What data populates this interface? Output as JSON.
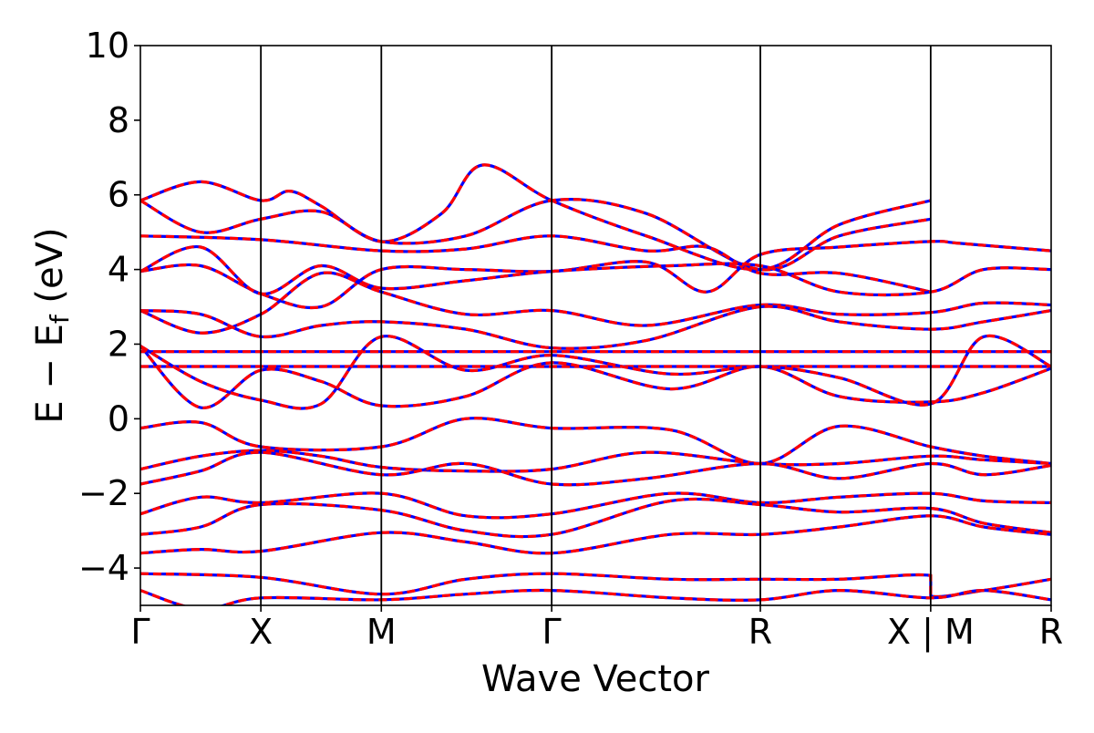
{
  "chart_data": {
    "type": "line",
    "title": "",
    "xlabel": "Wave Vector",
    "ylabel_parts": {
      "main": "E − E",
      "sub": "f",
      "unit": " (eV)"
    },
    "ylim": [
      -5,
      10
    ],
    "yticks": [
      10,
      8,
      6,
      4,
      2,
      0,
      -2,
      -4
    ],
    "ytick_labels": [
      "10",
      "8",
      "6",
      "4",
      "2",
      "0",
      "−2",
      "−4"
    ],
    "grid": false,
    "legend": "none",
    "kpoints": [
      {
        "label": "Γ",
        "x": 0.0
      },
      {
        "label": "X",
        "x": 0.5
      },
      {
        "label": "M",
        "x": 1.0
      },
      {
        "label": "Γ",
        "x": 1.707
      },
      {
        "label": "R",
        "x": 2.573
      },
      {
        "label": "X | M",
        "x": 3.28
      },
      {
        "label": "R",
        "x": 3.78
      }
    ],
    "xlim": [
      0,
      3.78
    ],
    "colors": {
      "series_a": "#0000ff",
      "series_b": "#ff0000",
      "axes": "#000000"
    },
    "series": [
      {
        "points": [
          [
            0,
            5.85
          ],
          [
            0.25,
            6.35
          ],
          [
            0.5,
            5.85
          ],
          [
            0.62,
            6.1
          ],
          [
            0.75,
            5.7
          ],
          [
            1.0,
            4.75
          ],
          [
            1.25,
            5.5
          ],
          [
            1.42,
            6.8
          ],
          [
            1.707,
            5.85
          ],
          [
            2.1,
            4.9
          ],
          [
            2.573,
            4.0
          ],
          [
            2.9,
            5.2
          ],
          [
            3.28,
            5.85
          ]
        ]
      },
      {
        "points": [
          [
            0,
            5.85
          ],
          [
            0.25,
            5.0
          ],
          [
            0.5,
            5.35
          ],
          [
            0.75,
            5.55
          ],
          [
            1.0,
            4.75
          ],
          [
            1.35,
            4.9
          ],
          [
            1.707,
            5.85
          ],
          [
            2.1,
            5.5
          ],
          [
            2.573,
            4.0
          ],
          [
            2.9,
            4.9
          ],
          [
            3.28,
            5.35
          ]
        ]
      },
      {
        "points": [
          [
            0,
            4.9
          ],
          [
            0.5,
            4.8
          ],
          [
            1.0,
            4.5
          ],
          [
            1.35,
            4.55
          ],
          [
            1.707,
            4.9
          ],
          [
            2.1,
            4.5
          ],
          [
            2.35,
            4.6
          ],
          [
            2.573,
            3.9
          ],
          [
            2.9,
            3.9
          ],
          [
            3.28,
            3.4
          ]
        ]
      },
      {
        "points": [
          [
            0,
            3.95
          ],
          [
            0.25,
            4.1
          ],
          [
            0.5,
            3.35
          ],
          [
            0.75,
            3.0
          ],
          [
            1.0,
            4.0
          ],
          [
            1.35,
            4.0
          ],
          [
            1.707,
            3.95
          ],
          [
            2.1,
            4.2
          ],
          [
            2.35,
            3.4
          ],
          [
            2.573,
            4.4
          ],
          [
            2.9,
            4.6
          ],
          [
            3.28,
            4.75
          ],
          [
            3.4,
            4.7
          ],
          [
            3.78,
            4.5
          ]
        ]
      },
      {
        "points": [
          [
            0,
            3.95
          ],
          [
            0.25,
            4.6
          ],
          [
            0.5,
            3.35
          ],
          [
            0.75,
            4.1
          ],
          [
            1.0,
            3.5
          ],
          [
            1.35,
            3.7
          ],
          [
            1.707,
            3.95
          ],
          [
            2.2,
            4.1
          ],
          [
            2.573,
            4.1
          ],
          [
            2.9,
            3.4
          ],
          [
            3.28,
            3.4
          ],
          [
            3.5,
            4.0
          ],
          [
            3.78,
            4.0
          ]
        ]
      },
      {
        "points": [
          [
            0,
            2.9
          ],
          [
            0.25,
            2.3
          ],
          [
            0.5,
            2.8
          ],
          [
            0.75,
            3.9
          ],
          [
            1.0,
            3.4
          ],
          [
            1.35,
            2.8
          ],
          [
            1.707,
            2.9
          ],
          [
            2.1,
            2.5
          ],
          [
            2.573,
            3.05
          ],
          [
            2.9,
            2.8
          ],
          [
            3.28,
            2.85
          ],
          [
            3.5,
            3.1
          ],
          [
            3.78,
            3.05
          ]
        ]
      },
      {
        "points": [
          [
            0,
            2.9
          ],
          [
            0.25,
            2.8
          ],
          [
            0.5,
            2.2
          ],
          [
            0.75,
            2.5
          ],
          [
            1.0,
            2.6
          ],
          [
            1.35,
            2.4
          ],
          [
            1.707,
            1.9
          ],
          [
            2.1,
            2.1
          ],
          [
            2.573,
            3.0
          ],
          [
            2.9,
            2.6
          ],
          [
            3.28,
            2.4
          ],
          [
            3.5,
            2.6
          ],
          [
            3.78,
            2.9
          ]
        ]
      },
      {
        "points": [
          [
            0,
            1.8
          ],
          [
            0.5,
            1.8
          ],
          [
            1.0,
            1.8
          ],
          [
            1.707,
            1.8
          ],
          [
            2.573,
            1.8
          ],
          [
            3.28,
            1.8
          ],
          [
            3.78,
            1.8
          ]
        ]
      },
      {
        "points": [
          [
            0,
            1.4
          ],
          [
            0.5,
            1.4
          ],
          [
            1.0,
            1.4
          ],
          [
            1.707,
            1.4
          ],
          [
            2.573,
            1.4
          ],
          [
            3.28,
            1.4
          ],
          [
            3.78,
            1.4
          ]
        ]
      },
      {
        "points": [
          [
            0,
            1.95
          ],
          [
            0.25,
            0.3
          ],
          [
            0.5,
            1.3
          ],
          [
            0.75,
            1.0
          ],
          [
            1.0,
            0.35
          ],
          [
            1.35,
            0.6
          ],
          [
            1.707,
            1.5
          ],
          [
            2.2,
            0.8
          ],
          [
            2.573,
            1.4
          ],
          [
            2.9,
            0.6
          ],
          [
            3.28,
            0.45
          ],
          [
            3.5,
            0.7
          ],
          [
            3.78,
            1.35
          ]
        ]
      },
      {
        "points": [
          [
            0,
            1.95
          ],
          [
            0.25,
            1.0
          ],
          [
            0.5,
            0.5
          ],
          [
            0.75,
            0.4
          ],
          [
            1.0,
            2.2
          ],
          [
            1.35,
            1.3
          ],
          [
            1.707,
            1.7
          ],
          [
            2.2,
            1.2
          ],
          [
            2.573,
            1.4
          ],
          [
            2.9,
            1.1
          ],
          [
            3.28,
            0.4
          ],
          [
            3.5,
            2.2
          ],
          [
            3.78,
            1.4
          ]
        ]
      },
      {
        "points": [
          [
            0,
            -0.25
          ],
          [
            0.25,
            -0.1
          ],
          [
            0.5,
            -0.75
          ],
          [
            1.0,
            -0.75
          ],
          [
            1.35,
            0.0
          ],
          [
            1.707,
            -0.25
          ],
          [
            2.2,
            -0.3
          ],
          [
            2.573,
            -1.2
          ],
          [
            2.9,
            -0.2
          ],
          [
            3.28,
            -0.75
          ],
          [
            3.5,
            -1.0
          ],
          [
            3.78,
            -1.2
          ]
        ]
      },
      {
        "points": [
          [
            0,
            -1.35
          ],
          [
            0.25,
            -1.0
          ],
          [
            0.5,
            -0.85
          ],
          [
            0.75,
            -1.0
          ],
          [
            1.0,
            -1.3
          ],
          [
            1.35,
            -1.4
          ],
          [
            1.707,
            -1.35
          ],
          [
            2.1,
            -0.9
          ],
          [
            2.573,
            -1.2
          ],
          [
            2.9,
            -1.2
          ],
          [
            3.28,
            -1.0
          ],
          [
            3.5,
            -1.1
          ],
          [
            3.78,
            -1.2
          ]
        ]
      },
      {
        "points": [
          [
            0,
            -1.75
          ],
          [
            0.25,
            -1.4
          ],
          [
            0.5,
            -0.9
          ],
          [
            1.0,
            -1.5
          ],
          [
            1.35,
            -1.2
          ],
          [
            1.707,
            -1.75
          ],
          [
            2.1,
            -1.6
          ],
          [
            2.573,
            -1.2
          ],
          [
            2.9,
            -1.6
          ],
          [
            3.28,
            -1.2
          ],
          [
            3.5,
            -1.5
          ],
          [
            3.78,
            -1.25
          ]
        ]
      },
      {
        "points": [
          [
            0,
            -2.55
          ],
          [
            0.25,
            -2.1
          ],
          [
            0.5,
            -2.25
          ],
          [
            1.0,
            -2.0
          ],
          [
            1.35,
            -2.6
          ],
          [
            1.707,
            -2.55
          ],
          [
            2.2,
            -2.0
          ],
          [
            2.573,
            -2.25
          ],
          [
            2.9,
            -2.1
          ],
          [
            3.28,
            -2.0
          ],
          [
            3.5,
            -2.2
          ],
          [
            3.78,
            -2.25
          ]
        ]
      },
      {
        "points": [
          [
            0,
            -3.1
          ],
          [
            0.25,
            -2.9
          ],
          [
            0.5,
            -2.3
          ],
          [
            1.0,
            -2.45
          ],
          [
            1.35,
            -3.0
          ],
          [
            1.707,
            -3.1
          ],
          [
            2.2,
            -2.2
          ],
          [
            2.573,
            -2.3
          ],
          [
            2.9,
            -2.5
          ],
          [
            3.28,
            -2.4
          ],
          [
            3.5,
            -2.8
          ],
          [
            3.78,
            -3.05
          ]
        ]
      },
      {
        "points": [
          [
            0,
            -3.6
          ],
          [
            0.25,
            -3.5
          ],
          [
            0.5,
            -3.55
          ],
          [
            1.0,
            -3.05
          ],
          [
            1.35,
            -3.3
          ],
          [
            1.707,
            -3.6
          ],
          [
            2.2,
            -3.1
          ],
          [
            2.573,
            -3.1
          ],
          [
            2.9,
            -2.9
          ],
          [
            3.28,
            -2.6
          ],
          [
            3.5,
            -2.9
          ],
          [
            3.78,
            -3.1
          ]
        ]
      },
      {
        "points": [
          [
            0,
            -4.15
          ],
          [
            0.5,
            -4.25
          ],
          [
            1.0,
            -4.7
          ],
          [
            1.35,
            -4.3
          ],
          [
            1.707,
            -4.15
          ],
          [
            2.2,
            -4.3
          ],
          [
            2.573,
            -4.3
          ],
          [
            2.9,
            -4.3
          ],
          [
            3.28,
            -4.2
          ],
          [
            3.28,
            -4.75
          ],
          [
            3.5,
            -4.6
          ],
          [
            3.78,
            -4.3
          ]
        ]
      },
      {
        "points": [
          [
            0,
            -4.6
          ],
          [
            0.25,
            -5.1
          ],
          [
            0.5,
            -4.8
          ],
          [
            1.0,
            -4.85
          ],
          [
            1.35,
            -4.7
          ],
          [
            1.707,
            -4.6
          ],
          [
            2.2,
            -4.8
          ],
          [
            2.573,
            -4.85
          ],
          [
            2.9,
            -4.6
          ],
          [
            3.28,
            -4.8
          ],
          [
            3.5,
            -4.6
          ],
          [
            3.78,
            -4.85
          ]
        ]
      }
    ]
  }
}
